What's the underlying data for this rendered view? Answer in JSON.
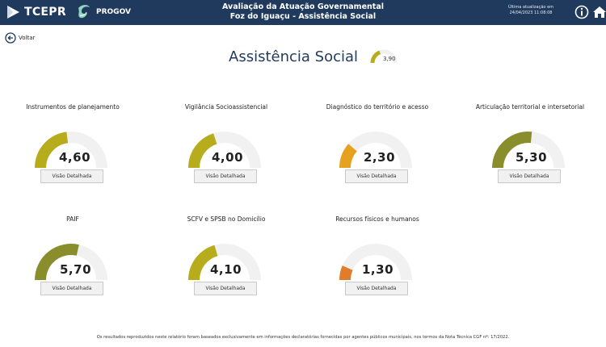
{
  "header": {
    "brand": "TCEPR",
    "partner": "PROGOV",
    "title_line1": "Avaliação da Atuação Governamental",
    "title_line2": "Foz do Iguaçu - Assistência Social",
    "update_line1": "Última atualização em",
    "update_line2": "24/04/2023 11:08:08",
    "colors": {
      "bar": "#1f3a5c"
    },
    "icons": [
      "play-arrow-logo-icon",
      "swirl-logo-icon",
      "info-icon",
      "home-icon"
    ]
  },
  "back": {
    "label": "Voltar",
    "icon": "arrow-left-circle-icon"
  },
  "page": {
    "title": "Assistência Social",
    "overall": {
      "value": 3.9,
      "max": 10,
      "label": "3,90",
      "color": "#b7ad1c"
    }
  },
  "gauge_scale": {
    "max": 10,
    "track_color": "#f1f1f1"
  },
  "cards": [
    {
      "title": "Instrumentos de planejamento",
      "value": 4.6,
      "label": "4,60",
      "button": "Visão Detalhada",
      "color": "#b7ad1c"
    },
    {
      "title": "Vigilância Socioassistencial",
      "value": 4.0,
      "label": "4,00",
      "button": "Visão Detalhada",
      "color": "#b7ad1c"
    },
    {
      "title": "Diagnóstico do território e acesso",
      "value": 2.3,
      "label": "2,30",
      "button": "Visão Detalhada",
      "color": "#e6a21e"
    },
    {
      "title": "Articulação territorial e intersetorial",
      "value": 5.3,
      "label": "5,30",
      "button": "Visão Detalhada",
      "color": "#8a8d2c"
    },
    {
      "title": "PAIF",
      "value": 5.7,
      "label": "5,70",
      "button": "Visão Detalhada",
      "color": "#8a8d2c"
    },
    {
      "title": "SCFV e SPSB no Domicílio",
      "value": 4.1,
      "label": "4,10",
      "button": "Visão Detalhada",
      "color": "#b7ad1c"
    },
    {
      "title": "Recursos físicos e humanos",
      "value": 1.3,
      "label": "1,30",
      "button": "Visão Detalhada",
      "color": "#e07c2a"
    }
  ],
  "footer": "Os resultados reproduzidos neste relatório foram baseados exclusivamente em informações declaratórias fornecidas por agentes públicos municipais, nos termos da Nota Técnica CGF nº: 17/2022."
}
